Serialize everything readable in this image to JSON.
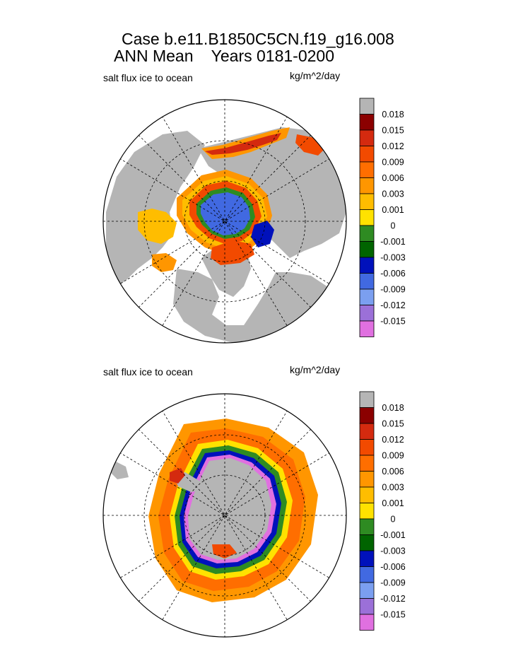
{
  "page": {
    "title_line1": "Case b.e11.B1850C5CN.f19_g16.008",
    "title_line2": "ANN Mean    Years 0181-0200"
  },
  "panels": [
    {
      "id": "north",
      "subtitle": "salt flux ice to ocean",
      "units": "kg/m^2/day"
    },
    {
      "id": "south",
      "subtitle": "salt flux ice to ocean",
      "units": "kg/m^2/day"
    }
  ],
  "colorbar": {
    "labels": [
      "0.018",
      "0.015",
      "0.012",
      "0.009",
      "0.006",
      "0.003",
      "0.001",
      "0",
      "-0.001",
      "-0.003",
      "-0.006",
      "-0.009",
      "-0.012",
      "-0.015"
    ],
    "colors": [
      "#b5b5b5",
      "#8b0000",
      "#d42a0f",
      "#f24a00",
      "#ff6e00",
      "#ff9600",
      "#ffbd00",
      "#ffe200",
      "#2e8b22",
      "#006400",
      "#0011bb",
      "#4169e1",
      "#7b9ff0",
      "#9b70d8",
      "#e070e0"
    ],
    "land_color": "#b5b5b5"
  }
}
